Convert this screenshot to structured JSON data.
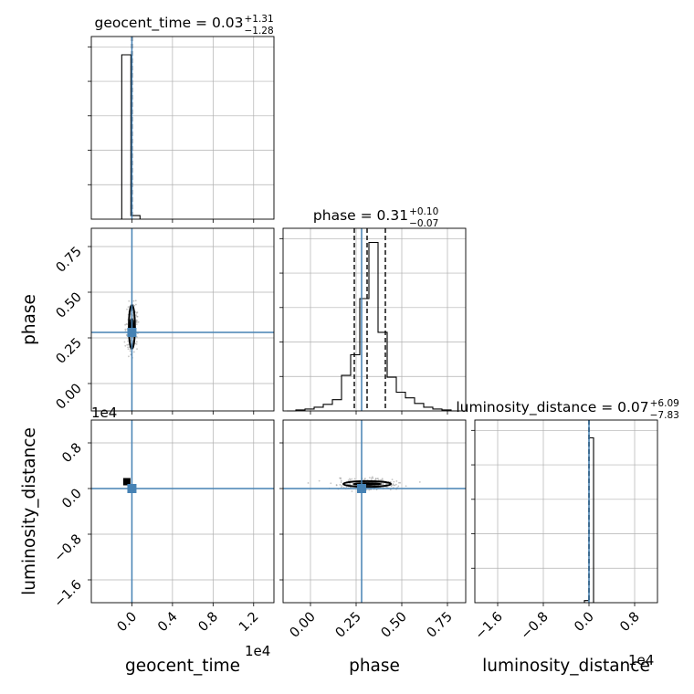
{
  "chart_data": {
    "type": "corner",
    "parameters": [
      "geocent_time",
      "phase",
      "luminosity_distance"
    ],
    "truth": {
      "geocent_time": 0.0,
      "phase": 0.28,
      "luminosity_distance": 0.0
    },
    "colors": {
      "truth": "#4682b4",
      "hist": "#000000",
      "contour": "#000000",
      "grid": "#b0b0b0",
      "scatter": "#a0a0a0",
      "frame": "#000000"
    },
    "titles": {
      "geocent_time": {
        "label": "geocent_time = ",
        "value": "0.03",
        "plus": "+1.31",
        "minus": "−1.28"
      },
      "phase": {
        "label": "phase = ",
        "value": "0.31",
        "plus": "+0.10",
        "minus": "−0.07"
      },
      "luminosity_distance": {
        "label": "luminosity_distance = ",
        "value": "0.07",
        "plus": "+6.09",
        "minus": "−7.83"
      }
    },
    "axis_labels": {
      "geocent_time": "geocent_time",
      "phase": "phase",
      "luminosity_distance": "luminosity_distance"
    },
    "offset_text": "1e4",
    "ticks": {
      "geocent_time": [
        "0.0",
        "0.4",
        "0.8",
        "1.2"
      ],
      "phase": [
        "0.00",
        "0.25",
        "0.50",
        "0.75"
      ],
      "luminosity_distance_x": [
        "−1.6",
        "−0.8",
        "0.0",
        "0.8"
      ],
      "luminosity_distance_y": [
        "−1.6",
        "−0.8",
        "0.0",
        "0.8"
      ]
    },
    "ranges": {
      "geocent_time": [
        -0.4,
        1.4
      ],
      "phase": [
        -0.15,
        0.85
      ],
      "luminosity_distance": [
        -2.0,
        1.2
      ]
    },
    "histograms": {
      "geocent_time": {
        "bins": [
          [
            -0.1,
            -0.01,
            1.0
          ],
          [
            -0.01,
            0.08,
            0.022
          ]
        ],
        "quantiles": [
          0.0,
          0.0,
          0.0
        ]
      },
      "phase": {
        "bins": [
          [
            -0.13,
            -0.08,
            0.0
          ],
          [
            -0.08,
            -0.03,
            0.005
          ],
          [
            -0.03,
            0.02,
            0.01
          ],
          [
            0.02,
            0.07,
            0.02
          ],
          [
            0.07,
            0.12,
            0.035
          ],
          [
            0.12,
            0.17,
            0.06
          ],
          [
            0.17,
            0.22,
            0.19
          ],
          [
            0.22,
            0.27,
            0.3
          ],
          [
            0.27,
            0.32,
            0.6
          ],
          [
            0.32,
            0.37,
            0.9
          ],
          [
            0.37,
            0.42,
            0.42
          ],
          [
            0.42,
            0.47,
            0.18
          ],
          [
            0.47,
            0.52,
            0.1
          ],
          [
            0.52,
            0.57,
            0.07
          ],
          [
            0.57,
            0.62,
            0.04
          ],
          [
            0.62,
            0.67,
            0.02
          ],
          [
            0.67,
            0.72,
            0.01
          ],
          [
            0.72,
            0.77,
            0.005
          ],
          [
            0.77,
            0.82,
            0.0
          ]
        ],
        "quantiles": [
          0.24,
          0.31,
          0.41
        ]
      },
      "luminosity_distance": {
        "bins": [
          [
            -0.08,
            0.0,
            0.012
          ],
          [
            0.0,
            0.08,
            0.95
          ]
        ],
        "quantiles": [
          0.0,
          0.0,
          0.0
        ]
      }
    },
    "panels2d": {
      "phase_vs_geocent_time": {
        "center": [
          0.0,
          0.31
        ],
        "contour_inner": [
          0.025,
          0.05
        ],
        "contour_outer": [
          0.03,
          0.12
        ]
      },
      "luminosity_distance_vs_geocent_time": {
        "center": [
          0.0,
          0.0
        ],
        "block": [
          -0.05,
          0.12
        ]
      },
      "luminosity_distance_vs_phase": {
        "center": [
          0.31,
          0.08
        ],
        "contour_inner": [
          0.08,
          0.03
        ],
        "contour_outer": [
          0.13,
          0.05
        ]
      }
    }
  }
}
